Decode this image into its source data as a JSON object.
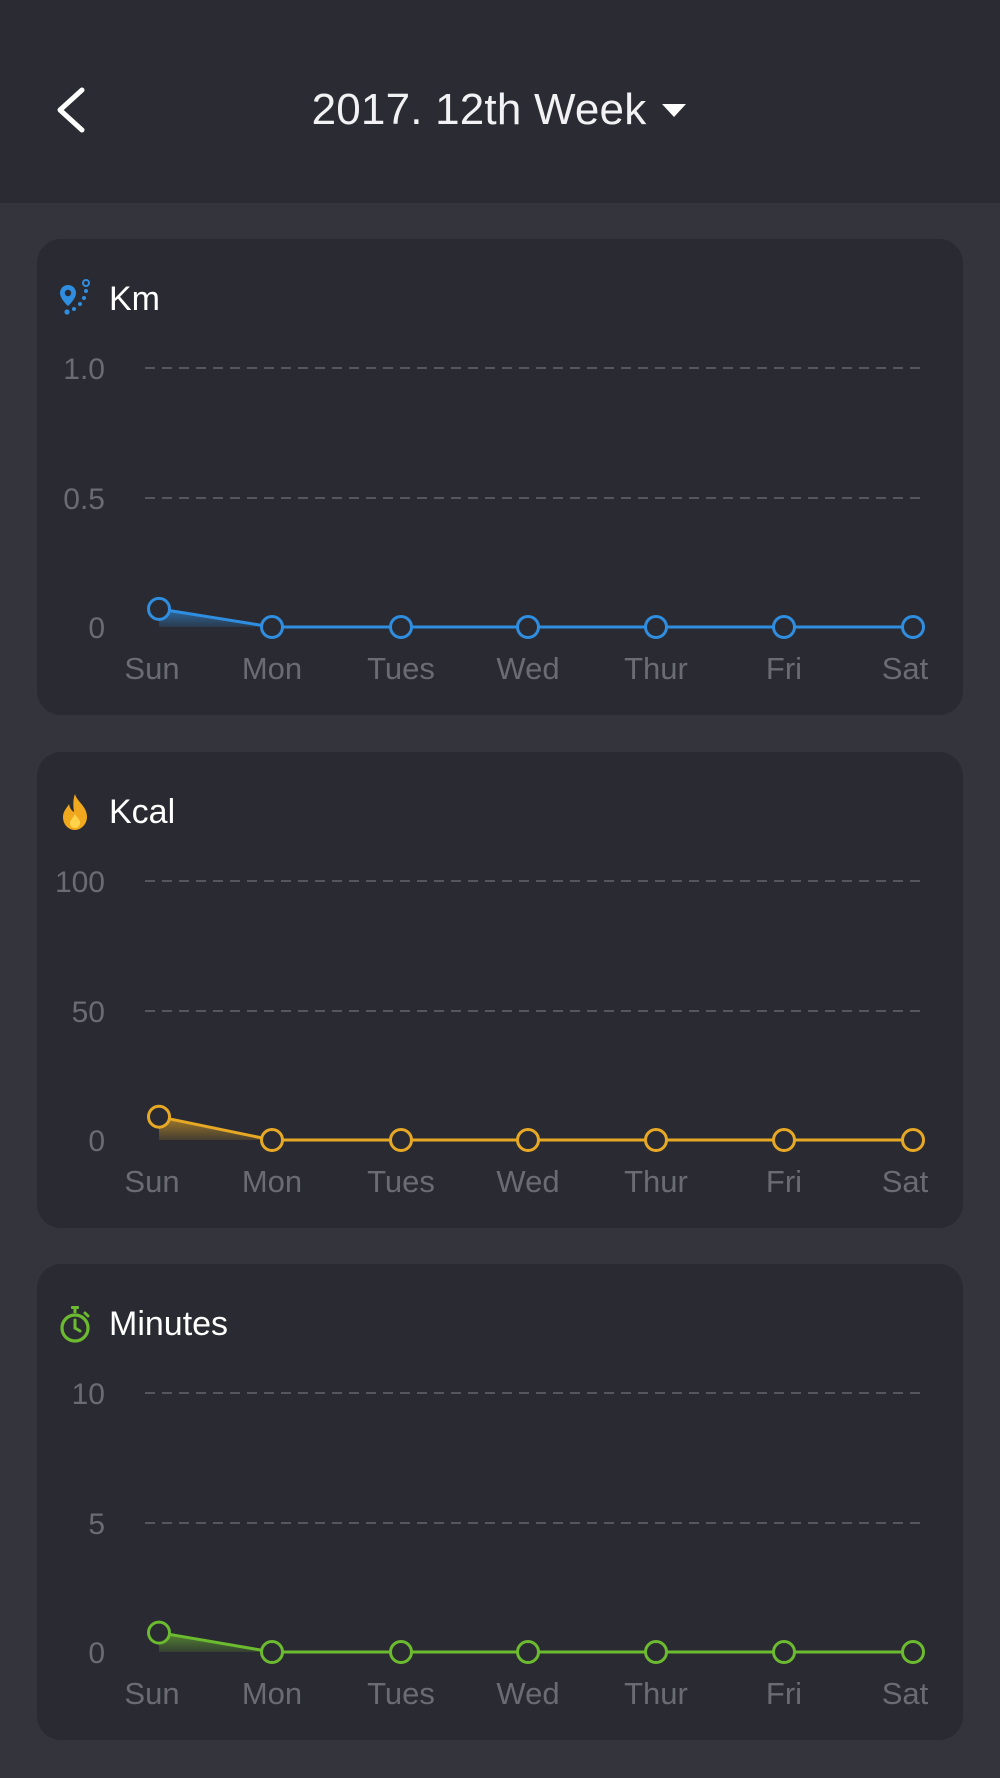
{
  "header": {
    "title": "2017. 12th Week"
  },
  "days": [
    "Sun",
    "Mon",
    "Tues",
    "Wed",
    "Thur",
    "Fri",
    "Sat"
  ],
  "chart_data": [
    {
      "type": "area",
      "title": "Km",
      "icon": "route-pin-icon",
      "color": "#2f8ee0",
      "categories": [
        "Sun",
        "Mon",
        "Tues",
        "Wed",
        "Thur",
        "Fri",
        "Sat"
      ],
      "values": [
        0.07,
        0,
        0,
        0,
        0,
        0,
        0
      ],
      "yticks": [
        "1.0",
        "0.5",
        "0"
      ],
      "ylim": [
        0,
        1.0
      ],
      "grid": true
    },
    {
      "type": "area",
      "title": "Kcal",
      "icon": "flame-icon",
      "color": "#e6a825",
      "categories": [
        "Sun",
        "Mon",
        "Tues",
        "Wed",
        "Thur",
        "Fri",
        "Sat"
      ],
      "values": [
        9,
        0,
        0,
        0,
        0,
        0,
        0
      ],
      "yticks": [
        "100",
        "50",
        "0"
      ],
      "ylim": [
        0,
        100
      ],
      "grid": true
    },
    {
      "type": "area",
      "title": "Minutes",
      "icon": "stopwatch-icon",
      "color": "#6cba2f",
      "categories": [
        "Sun",
        "Mon",
        "Tues",
        "Wed",
        "Thur",
        "Fri",
        "Sat"
      ],
      "values": [
        0.75,
        0,
        0,
        0,
        0,
        0,
        0
      ],
      "yticks": [
        "10",
        "5",
        "0"
      ],
      "ylim": [
        0,
        10
      ],
      "grid": true
    }
  ]
}
